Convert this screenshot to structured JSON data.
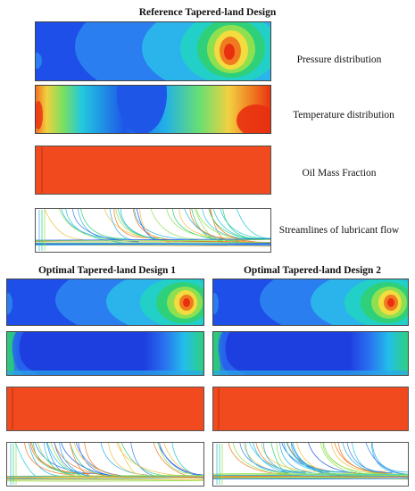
{
  "figure": {
    "reference_title": "Reference Tapered-land Design",
    "optimal1_title": "Optimal Tapered-land Design 1",
    "optimal2_title": "Optimal Tapered-land Design 2",
    "labels": {
      "pressure": "Pressure distribution",
      "temperature": "Temperature distribution",
      "oil": "Oil Mass Fraction",
      "streamlines": "Streamlines of lubricant flow"
    }
  },
  "colors": {
    "deep_blue": "#1e3fe0",
    "mid_blue": "#2f7cf0",
    "cyan": "#22c8e8",
    "green": "#2ed45a",
    "yellow": "#f0e84a",
    "orange": "#f29a2a",
    "red": "#f04010",
    "oil_red": "#f04a1e"
  }
}
